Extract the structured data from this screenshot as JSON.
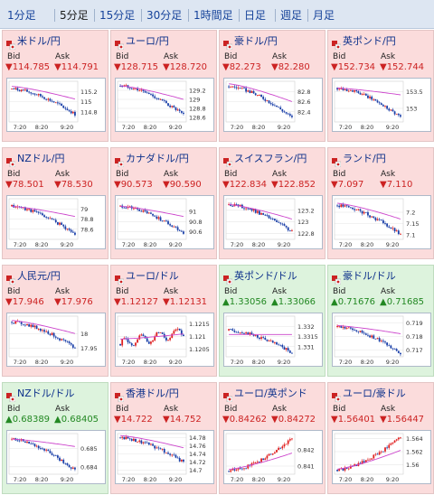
{
  "tabs": [
    {
      "label": "1分足",
      "active": false
    },
    {
      "label": "5分足",
      "active": true
    },
    {
      "label": "15分足",
      "active": false
    },
    {
      "label": "30分足",
      "active": false
    },
    {
      "label": "1時間足",
      "active": false
    },
    {
      "label": "日足",
      "active": false
    },
    {
      "label": "週足",
      "active": false
    },
    {
      "label": "月足",
      "active": false
    }
  ],
  "labels": {
    "bid": "Bid",
    "ask": "Ask"
  },
  "colors": {
    "down_bg": "#fbdcdc",
    "up_bg": "#ddf3dd",
    "down_text": "#cc2222",
    "up_text": "#228822",
    "candle_up": "#e02020",
    "candle_down": "#1a3fa8",
    "ma": "#cc44cc"
  },
  "panels": [
    {
      "name": "米ドル/円",
      "dir": "down",
      "bid": "▼114.785",
      "ask": "▼114.791",
      "icon": "flag-us-jp-icon",
      "y_ticks": [
        "115.2",
        "115",
        "114.8"
      ],
      "x_ticks": [
        "7:20",
        "8:20",
        "9:20"
      ],
      "chart_data": {
        "type": "candlestick",
        "trend": "down",
        "ylim": [
          114.6,
          115.4
        ],
        "start": 115.25,
        "end": 114.75,
        "ma_start": 115.3,
        "ma_end": 115.05
      }
    },
    {
      "name": "ユーロ/円",
      "dir": "down",
      "bid": "▼128.715",
      "ask": "▼128.720",
      "icon": "flag-eu-jp-icon",
      "y_ticks": [
        "129.2",
        "129",
        "128.8",
        "128.6"
      ],
      "x_ticks": [
        "7:20",
        "8:20",
        "9:20"
      ],
      "chart_data": {
        "type": "candlestick",
        "trend": "down",
        "ylim": [
          128.5,
          129.4
        ],
        "start": 129.3,
        "end": 128.65,
        "ma_start": 129.3,
        "ma_end": 129.0
      }
    },
    {
      "name": "豪ドル/円",
      "dir": "down",
      "bid": "▼82.273",
      "ask": "▼82.280",
      "icon": "flag-au-jp-icon",
      "y_ticks": [
        "82.8",
        "82.6",
        "82.4"
      ],
      "x_ticks": [
        "7:20",
        "8:20",
        "9:20"
      ],
      "chart_data": {
        "type": "candlestick",
        "trend": "down",
        "ylim": [
          82.2,
          83.0
        ],
        "start": 82.9,
        "end": 82.28,
        "ma_start": 82.95,
        "ma_end": 82.6
      }
    },
    {
      "name": "英ポンド/円",
      "dir": "down",
      "bid": "▼152.734",
      "ask": "▼152.744",
      "icon": "flag-gb-jp-icon",
      "y_ticks": [
        "153.5",
        "153"
      ],
      "x_ticks": [
        "7:20",
        "8:20",
        "9:20"
      ],
      "chart_data": {
        "type": "candlestick",
        "trend": "down",
        "ylim": [
          152.6,
          153.8
        ],
        "start": 153.6,
        "end": 152.75,
        "ma_start": 153.6,
        "ma_end": 153.4
      }
    },
    {
      "name": "NZドル/円",
      "dir": "down",
      "bid": "▼78.501",
      "ask": "▼78.530",
      "icon": "flag-nz-jp-icon",
      "y_ticks": [
        "79",
        "78.8",
        "78.6"
      ],
      "x_ticks": [
        "7:20",
        "8:20",
        "9:20"
      ],
      "chart_data": {
        "type": "candlestick",
        "trend": "down",
        "ylim": [
          78.4,
          79.2
        ],
        "start": 79.05,
        "end": 78.5,
        "ma_start": 79.05,
        "ma_end": 78.85
      }
    },
    {
      "name": "カナダドル/円",
      "dir": "down",
      "bid": "▼90.573",
      "ask": "▼90.590",
      "icon": "flag-ca-jp-icon",
      "y_ticks": [
        "91",
        "90.8",
        "90.6"
      ],
      "x_ticks": [
        "7:20",
        "8:20",
        "9:20"
      ],
      "chart_data": {
        "type": "candlestick",
        "trend": "down",
        "ylim": [
          90.45,
          91.25
        ],
        "start": 91.1,
        "end": 90.58,
        "ma_start": 91.1,
        "ma_end": 90.9
      }
    },
    {
      "name": "スイスフラン/円",
      "dir": "down",
      "bid": "▼122.834",
      "ask": "▼122.852",
      "icon": "flag-ch-jp-icon",
      "y_ticks": [
        "123.2",
        "123",
        "122.8"
      ],
      "x_ticks": [
        "7:20",
        "8:20",
        "9:20"
      ],
      "chart_data": {
        "type": "candlestick",
        "trend": "down",
        "ylim": [
          122.7,
          123.4
        ],
        "start": 123.3,
        "end": 122.83,
        "ma_start": 123.3,
        "ma_end": 123.05
      }
    },
    {
      "name": "ランド/円",
      "dir": "down",
      "bid": "▼7.097",
      "ask": "▼7.110",
      "icon": "flag-za-jp-icon",
      "y_ticks": [
        "7.2",
        "7.15",
        "7.1"
      ],
      "x_ticks": [
        "7:20",
        "8:20",
        "9:20"
      ],
      "chart_data": {
        "type": "candlestick",
        "trend": "down",
        "ylim": [
          7.08,
          7.26
        ],
        "start": 7.23,
        "end": 7.1,
        "ma_start": 7.24,
        "ma_end": 7.17
      }
    },
    {
      "name": "人民元/円",
      "dir": "down",
      "bid": "▼17.946",
      "ask": "▼17.976",
      "icon": "flag-cn-jp-icon",
      "y_ticks": [
        "18",
        "17.95"
      ],
      "x_ticks": [
        "7:20",
        "8:20",
        "9:20"
      ],
      "chart_data": {
        "type": "candlestick",
        "trend": "down",
        "ylim": [
          17.92,
          18.06
        ],
        "start": 18.04,
        "end": 17.95,
        "ma_start": 18.045,
        "ma_end": 18.0
      }
    },
    {
      "name": "ユーロ/ドル",
      "dir": "down",
      "bid": "▼1.12127",
      "ask": "▼1.12131",
      "icon": "flag-eu-us-icon",
      "y_ticks": [
        "1.1215",
        "1.121",
        "1.1205"
      ],
      "x_ticks": [
        "7:20",
        "8:20",
        "9:20"
      ],
      "chart_data": {
        "type": "candlestick",
        "trend": "flat",
        "ylim": [
          1.1202,
          1.1218
        ],
        "start": 1.1207,
        "end": 1.1212,
        "ma_start": 1.1209,
        "ma_end": 1.1211
      }
    },
    {
      "name": "英ポンド/ドル",
      "dir": "up",
      "bid": "▲1.33056",
      "ask": "▲1.33066",
      "icon": "flag-gb-us-icon",
      "y_ticks": [
        "1.332",
        "1.3315",
        "1.331"
      ],
      "x_ticks": [
        "7:20",
        "8:20",
        "9:20"
      ],
      "chart_data": {
        "type": "candlestick",
        "trend": "down",
        "ylim": [
          1.3305,
          1.3325
        ],
        "start": 1.3318,
        "end": 1.3307,
        "ma_start": 1.3316,
        "ma_end": 1.3316
      }
    },
    {
      "name": "豪ドル/ドル",
      "dir": "up",
      "bid": "▲0.71676",
      "ask": "▲0.71685",
      "icon": "flag-au-us-icon",
      "y_ticks": [
        "0.719",
        "0.718",
        "0.717"
      ],
      "x_ticks": [
        "7:20",
        "8:20",
        "9:20"
      ],
      "chart_data": {
        "type": "candlestick",
        "trend": "down",
        "ylim": [
          0.7165,
          0.7195
        ],
        "start": 0.7187,
        "end": 0.7168,
        "ma_start": 0.7188,
        "ma_end": 0.7182
      }
    },
    {
      "name": "NZドル/ドル",
      "dir": "up",
      "bid": "▲0.68389",
      "ask": "▲0.68405",
      "icon": "flag-nz-us-icon",
      "y_ticks": [
        "0.685",
        "0.684"
      ],
      "x_ticks": [
        "7:20",
        "8:20",
        "9:20"
      ],
      "chart_data": {
        "type": "candlestick",
        "trend": "down",
        "ylim": [
          0.6836,
          0.6858
        ],
        "start": 0.6855,
        "end": 0.6838,
        "ma_start": 0.6855,
        "ma_end": 0.6851
      }
    },
    {
      "name": "香港ドル/円",
      "dir": "down",
      "bid": "▼14.722",
      "ask": "▼14.752",
      "icon": "flag-hk-jp-icon",
      "y_ticks": [
        "14.78",
        "14.76",
        "14.74",
        "14.72",
        "14.7"
      ],
      "x_ticks": [
        "7:20",
        "8:20",
        "9:20"
      ],
      "chart_data": {
        "type": "candlestick",
        "trend": "down",
        "ylim": [
          14.69,
          14.79
        ],
        "start": 14.78,
        "end": 14.72,
        "ma_start": 14.785,
        "ma_end": 14.755
      }
    },
    {
      "name": "ユーロ/英ポンド",
      "dir": "down",
      "bid": "▼0.84262",
      "ask": "▼0.84272",
      "icon": "flag-eu-gb-icon",
      "y_ticks": [
        "0.842",
        "0.841"
      ],
      "x_ticks": [
        "7:20",
        "8:20",
        "9:20"
      ],
      "chart_data": {
        "type": "candlestick",
        "trend": "up",
        "ylim": [
          0.8405,
          0.843
        ],
        "start": 0.8407,
        "end": 0.8427,
        "ma_start": 0.8408,
        "ma_end": 0.8418
      }
    },
    {
      "name": "ユーロ/豪ドル",
      "dir": "down",
      "bid": "▼1.56401",
      "ask": "▼1.56447",
      "icon": "flag-eu-au-icon",
      "y_ticks": [
        "1.564",
        "1.562",
        "1.56"
      ],
      "x_ticks": [
        "7:20",
        "8:20",
        "9:20"
      ],
      "chart_data": {
        "type": "candlestick",
        "trend": "up",
        "ylim": [
          1.5585,
          1.5648
        ],
        "start": 1.5592,
        "end": 1.5643,
        "ma_start": 1.5593,
        "ma_end": 1.5622
      }
    }
  ]
}
